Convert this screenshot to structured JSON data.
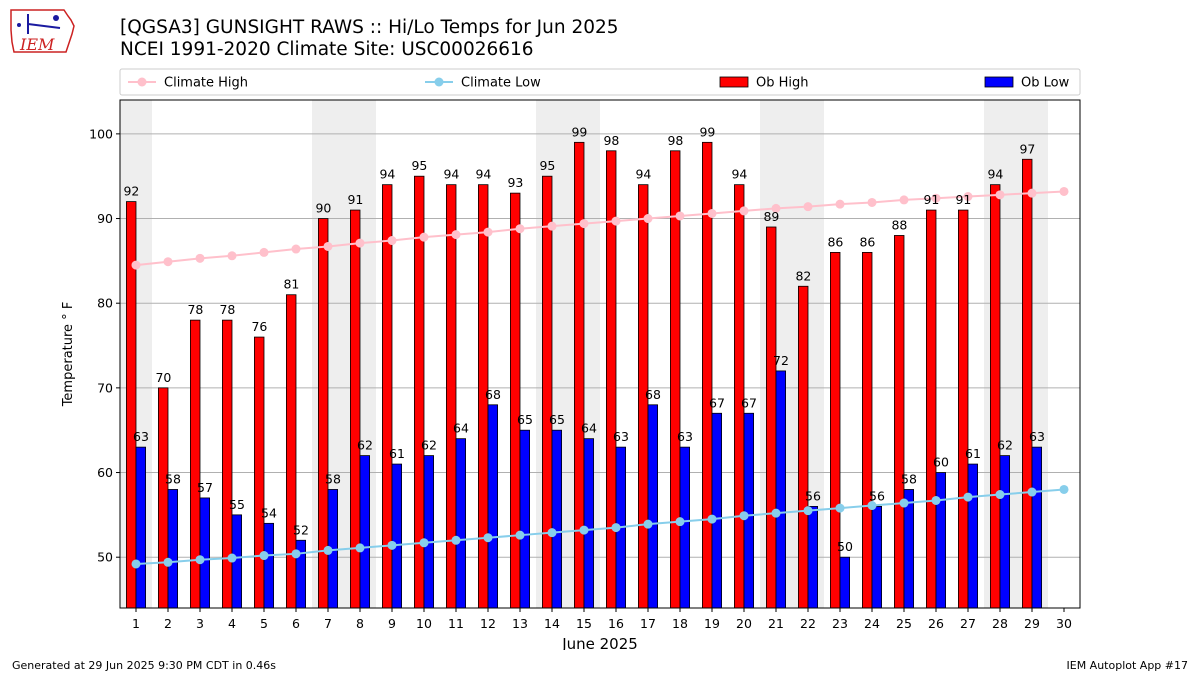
{
  "header": {
    "title": "[QGSA3] GUNSIGHT RAWS :: Hi/Lo Temps for Jun 2025",
    "subtitle": "NCEI 1991-2020 Climate Site: USC00026616",
    "logo_text": "IEM"
  },
  "footer": {
    "generated": "Generated at 29 Jun 2025 9:30 PM CDT in 0.46s",
    "app": "IEM Autoplot App #17"
  },
  "colors": {
    "ob_high": "#ff0000",
    "ob_low": "#0000ff",
    "climate_high": "#ffc0cb",
    "climate_low": "#87ceeb",
    "weekend_band": "#eeeeee",
    "grid": "#b0b0b0",
    "logo_red": "#cc2222"
  },
  "chart_data": {
    "type": "bar",
    "xlabel": "June 2025",
    "ylabel": "Temperature ° F",
    "ylim": [
      44,
      104
    ],
    "yticks": [
      50,
      60,
      70,
      80,
      90,
      100
    ],
    "grid": "y",
    "legend_placement": "top, above plot",
    "categories": [
      "1",
      "2",
      "3",
      "4",
      "5",
      "6",
      "7",
      "8",
      "9",
      "10",
      "11",
      "12",
      "13",
      "14",
      "15",
      "16",
      "17",
      "18",
      "19",
      "20",
      "21",
      "22",
      "23",
      "24",
      "25",
      "26",
      "27",
      "28",
      "29",
      "30"
    ],
    "weekend_days": [
      1,
      7,
      8,
      14,
      15,
      21,
      22,
      28,
      29
    ],
    "series": [
      {
        "name": "Ob High",
        "kind": "bar",
        "values": [
          92,
          70,
          78,
          78,
          76,
          81,
          90,
          91,
          94,
          95,
          94,
          94,
          93,
          95,
          99,
          98,
          94,
          98,
          99,
          94,
          89,
          82,
          86,
          86,
          88,
          91,
          91,
          94,
          97,
          null
        ]
      },
      {
        "name": "Ob Low",
        "kind": "bar",
        "values": [
          63,
          58,
          57,
          55,
          54,
          52,
          58,
          62,
          61,
          62,
          64,
          68,
          65,
          65,
          64,
          63,
          68,
          63,
          67,
          67,
          72,
          56,
          50,
          56,
          58,
          60,
          61,
          62,
          63,
          null
        ]
      },
      {
        "name": "Climate High",
        "kind": "line",
        "values": [
          84.5,
          84.9,
          85.3,
          85.6,
          86.0,
          86.4,
          86.7,
          87.1,
          87.4,
          87.8,
          88.1,
          88.4,
          88.8,
          89.1,
          89.4,
          89.7,
          90.0,
          90.3,
          90.6,
          90.9,
          91.2,
          91.4,
          91.7,
          91.9,
          92.2,
          92.4,
          92.6,
          92.8,
          93.0,
          93.2
        ]
      },
      {
        "name": "Climate Low",
        "kind": "line",
        "values": [
          49.2,
          49.4,
          49.7,
          49.9,
          50.2,
          50.4,
          50.8,
          51.1,
          51.4,
          51.7,
          52.0,
          52.3,
          52.6,
          52.9,
          53.2,
          53.5,
          53.9,
          54.2,
          54.5,
          54.9,
          55.2,
          55.5,
          55.8,
          56.1,
          56.4,
          56.7,
          57.1,
          57.4,
          57.7,
          58.0
        ]
      }
    ]
  }
}
